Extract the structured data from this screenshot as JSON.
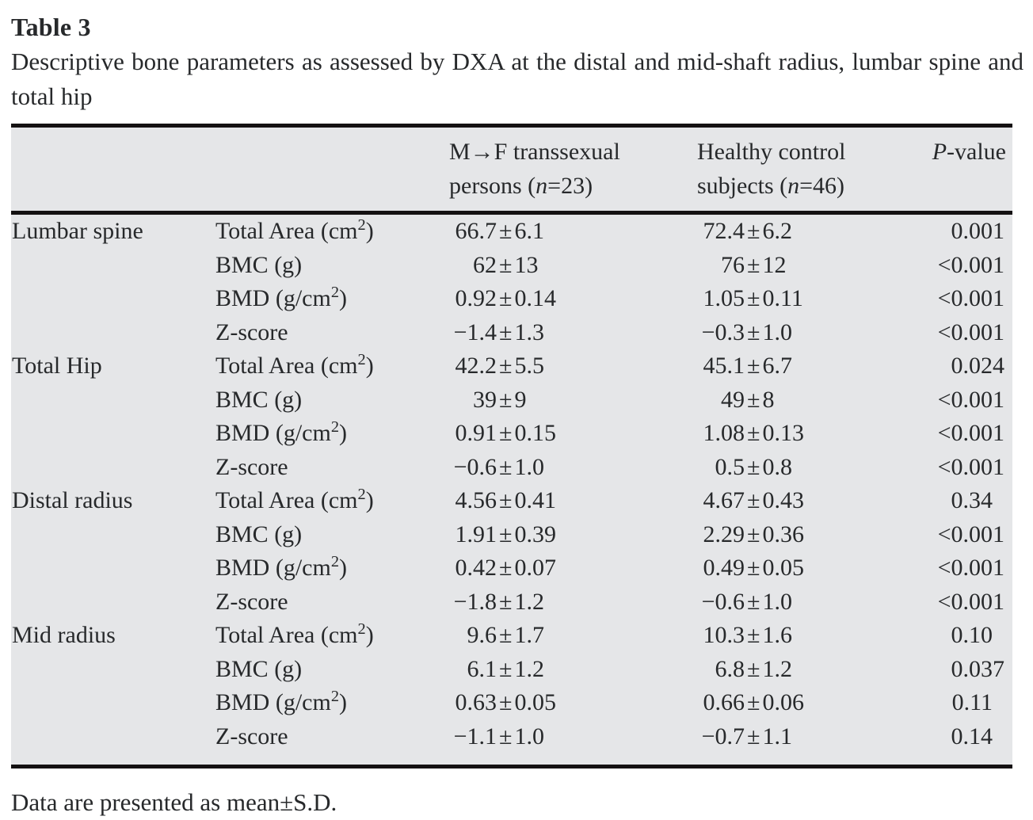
{
  "page": {
    "title": "Table 3",
    "caption": "Descriptive bone parameters as assessed by DXA at the distal and mid-shaft radius, lumbar spine and total hip",
    "footnote": "Data are presented as mean±S.D."
  },
  "table": {
    "header": {
      "mf": {
        "line1": "M→F transsexual",
        "line2_pre": "persons (",
        "line2_italic": "n",
        "line2_post": "=23)"
      },
      "hc": {
        "line1": "Healthy control",
        "line2_pre": "subjects (",
        "line2_italic": "n",
        "line2_post": "=46)"
      },
      "p": {
        "italic": "P",
        "rest": "-value"
      }
    },
    "groups": [
      {
        "site": "Lumbar spine",
        "rows": [
          {
            "param": "Total Area (cm²)",
            "mf": "66.7±6.1",
            "hc": "72.4±6.2",
            "p": "0.001"
          },
          {
            "param": "BMC (g)",
            "mf": "62±13",
            "hc": "76±12",
            "p": "<0.001"
          },
          {
            "param": "BMD (g/cm²)",
            "mf": "0.92±0.14",
            "hc": "1.05±0.11",
            "p": "<0.001"
          },
          {
            "param": "Z-score",
            "mf": "−1.4±1.3",
            "hc": "−0.3±1.0",
            "p": "<0.001"
          }
        ]
      },
      {
        "site": "Total Hip",
        "rows": [
          {
            "param": "Total Area (cm²)",
            "mf": "42.2±5.5",
            "hc": "45.1±6.7",
            "p": "0.024"
          },
          {
            "param": "BMC (g)",
            "mf": "39±9",
            "hc": "49±8",
            "p": "<0.001"
          },
          {
            "param": "BMD (g/cm²)",
            "mf": "0.91±0.15",
            "hc": "1.08±0.13",
            "p": "<0.001"
          },
          {
            "param": "Z-score",
            "mf": "−0.6±1.0",
            "hc": "0.5±0.8",
            "p": "<0.001"
          }
        ]
      },
      {
        "site": "Distal radius",
        "rows": [
          {
            "param": "Total Area (cm²)",
            "mf": "4.56±0.41",
            "hc": "4.67±0.43",
            "p": "0.34"
          },
          {
            "param": "BMC (g)",
            "mf": "1.91±0.39",
            "hc": "2.29±0.36",
            "p": "<0.001"
          },
          {
            "param": "BMD (g/cm²)",
            "mf": "0.42±0.07",
            "hc": "0.49±0.05",
            "p": "<0.001"
          },
          {
            "param": "Z-score",
            "mf": "−1.8±1.2",
            "hc": "−0.6±1.0",
            "p": "<0.001"
          }
        ]
      },
      {
        "site": "Mid radius",
        "rows": [
          {
            "param": "Total Area (cm²)",
            "mf": "9.6±1.7",
            "hc": "10.3±1.6",
            "p": "0.10"
          },
          {
            "param": "BMC (g)",
            "mf": "6.1±1.2",
            "hc": "6.8±1.2",
            "p": "0.037"
          },
          {
            "param": "BMD (g/cm²)",
            "mf": "0.63±0.05",
            "hc": "0.66±0.06",
            "p": "0.11"
          },
          {
            "param": "Z-score",
            "mf": "−1.1±1.0",
            "hc": "−0.7±1.1",
            "p": "0.14"
          }
        ]
      }
    ]
  },
  "colors": {
    "table_background": "#e5e6e8",
    "rule": "#141112",
    "text": "#27292b"
  }
}
